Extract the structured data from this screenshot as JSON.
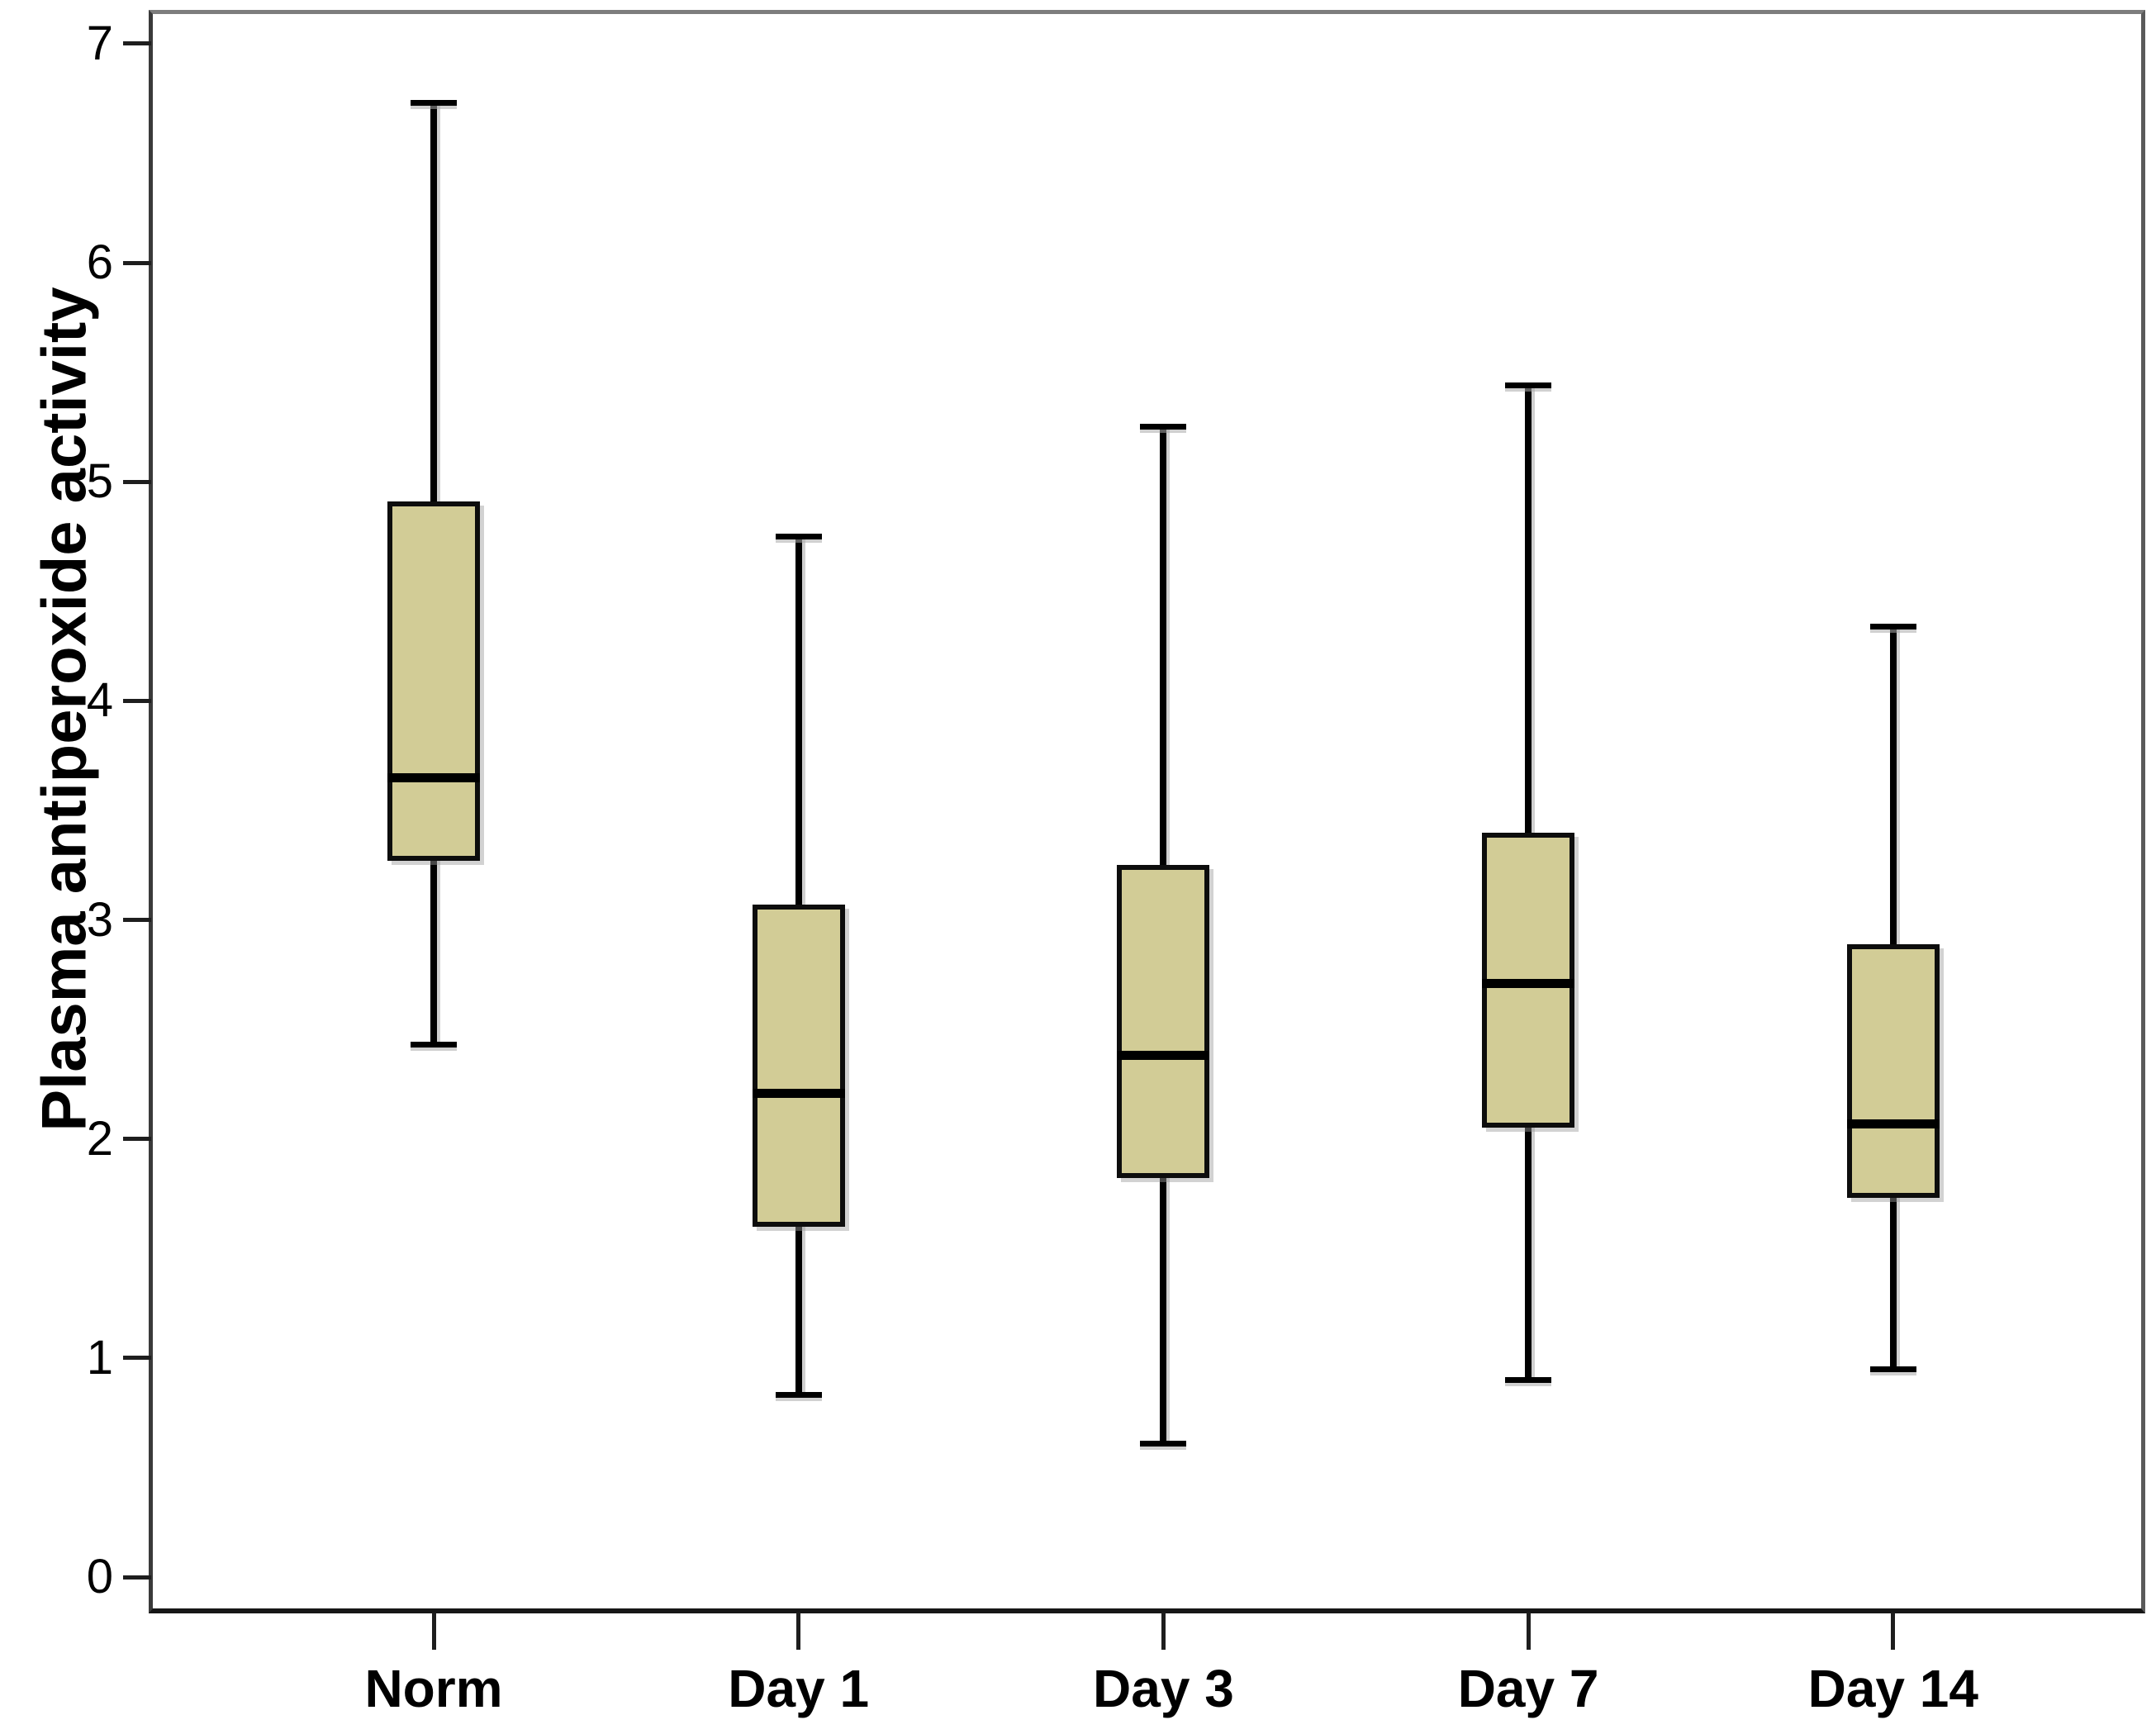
{
  "figure": {
    "ylabel": "Plasma antiperoxide activity"
  },
  "chart_data": {
    "type": "box",
    "title": "",
    "xlabel": "",
    "ylabel": "Plasma antiperoxide activity",
    "categories": [
      "Norm",
      "Day 1",
      "Day 3",
      "Day 7",
      "Day 14"
    ],
    "series": [
      {
        "name": "Norm",
        "min": 2.43,
        "q1": 3.27,
        "median": 3.65,
        "q3": 4.91,
        "max": 6.73
      },
      {
        "name": "Day 1",
        "min": 0.83,
        "q1": 1.6,
        "median": 2.21,
        "q3": 3.07,
        "max": 4.75
      },
      {
        "name": "Day 3",
        "min": 0.61,
        "q1": 1.82,
        "median": 2.38,
        "q3": 3.25,
        "max": 5.25
      },
      {
        "name": "Day 7",
        "min": 0.9,
        "q1": 2.05,
        "median": 2.71,
        "q3": 3.4,
        "max": 5.44
      },
      {
        "name": "Day 14",
        "min": 0.95,
        "q1": 1.73,
        "median": 2.07,
        "q3": 2.89,
        "max": 4.34
      }
    ],
    "yticks": [
      "0",
      "1",
      "2",
      "3",
      "4",
      "5",
      "6",
      "7"
    ],
    "ylim": [
      -0.16,
      7.14
    ],
    "grid": false,
    "legend": "none",
    "box_fill_color": "#d2cc96",
    "line_color": "#000000",
    "frame_color": "#6e6e6e",
    "background_color": "#ffffff"
  }
}
